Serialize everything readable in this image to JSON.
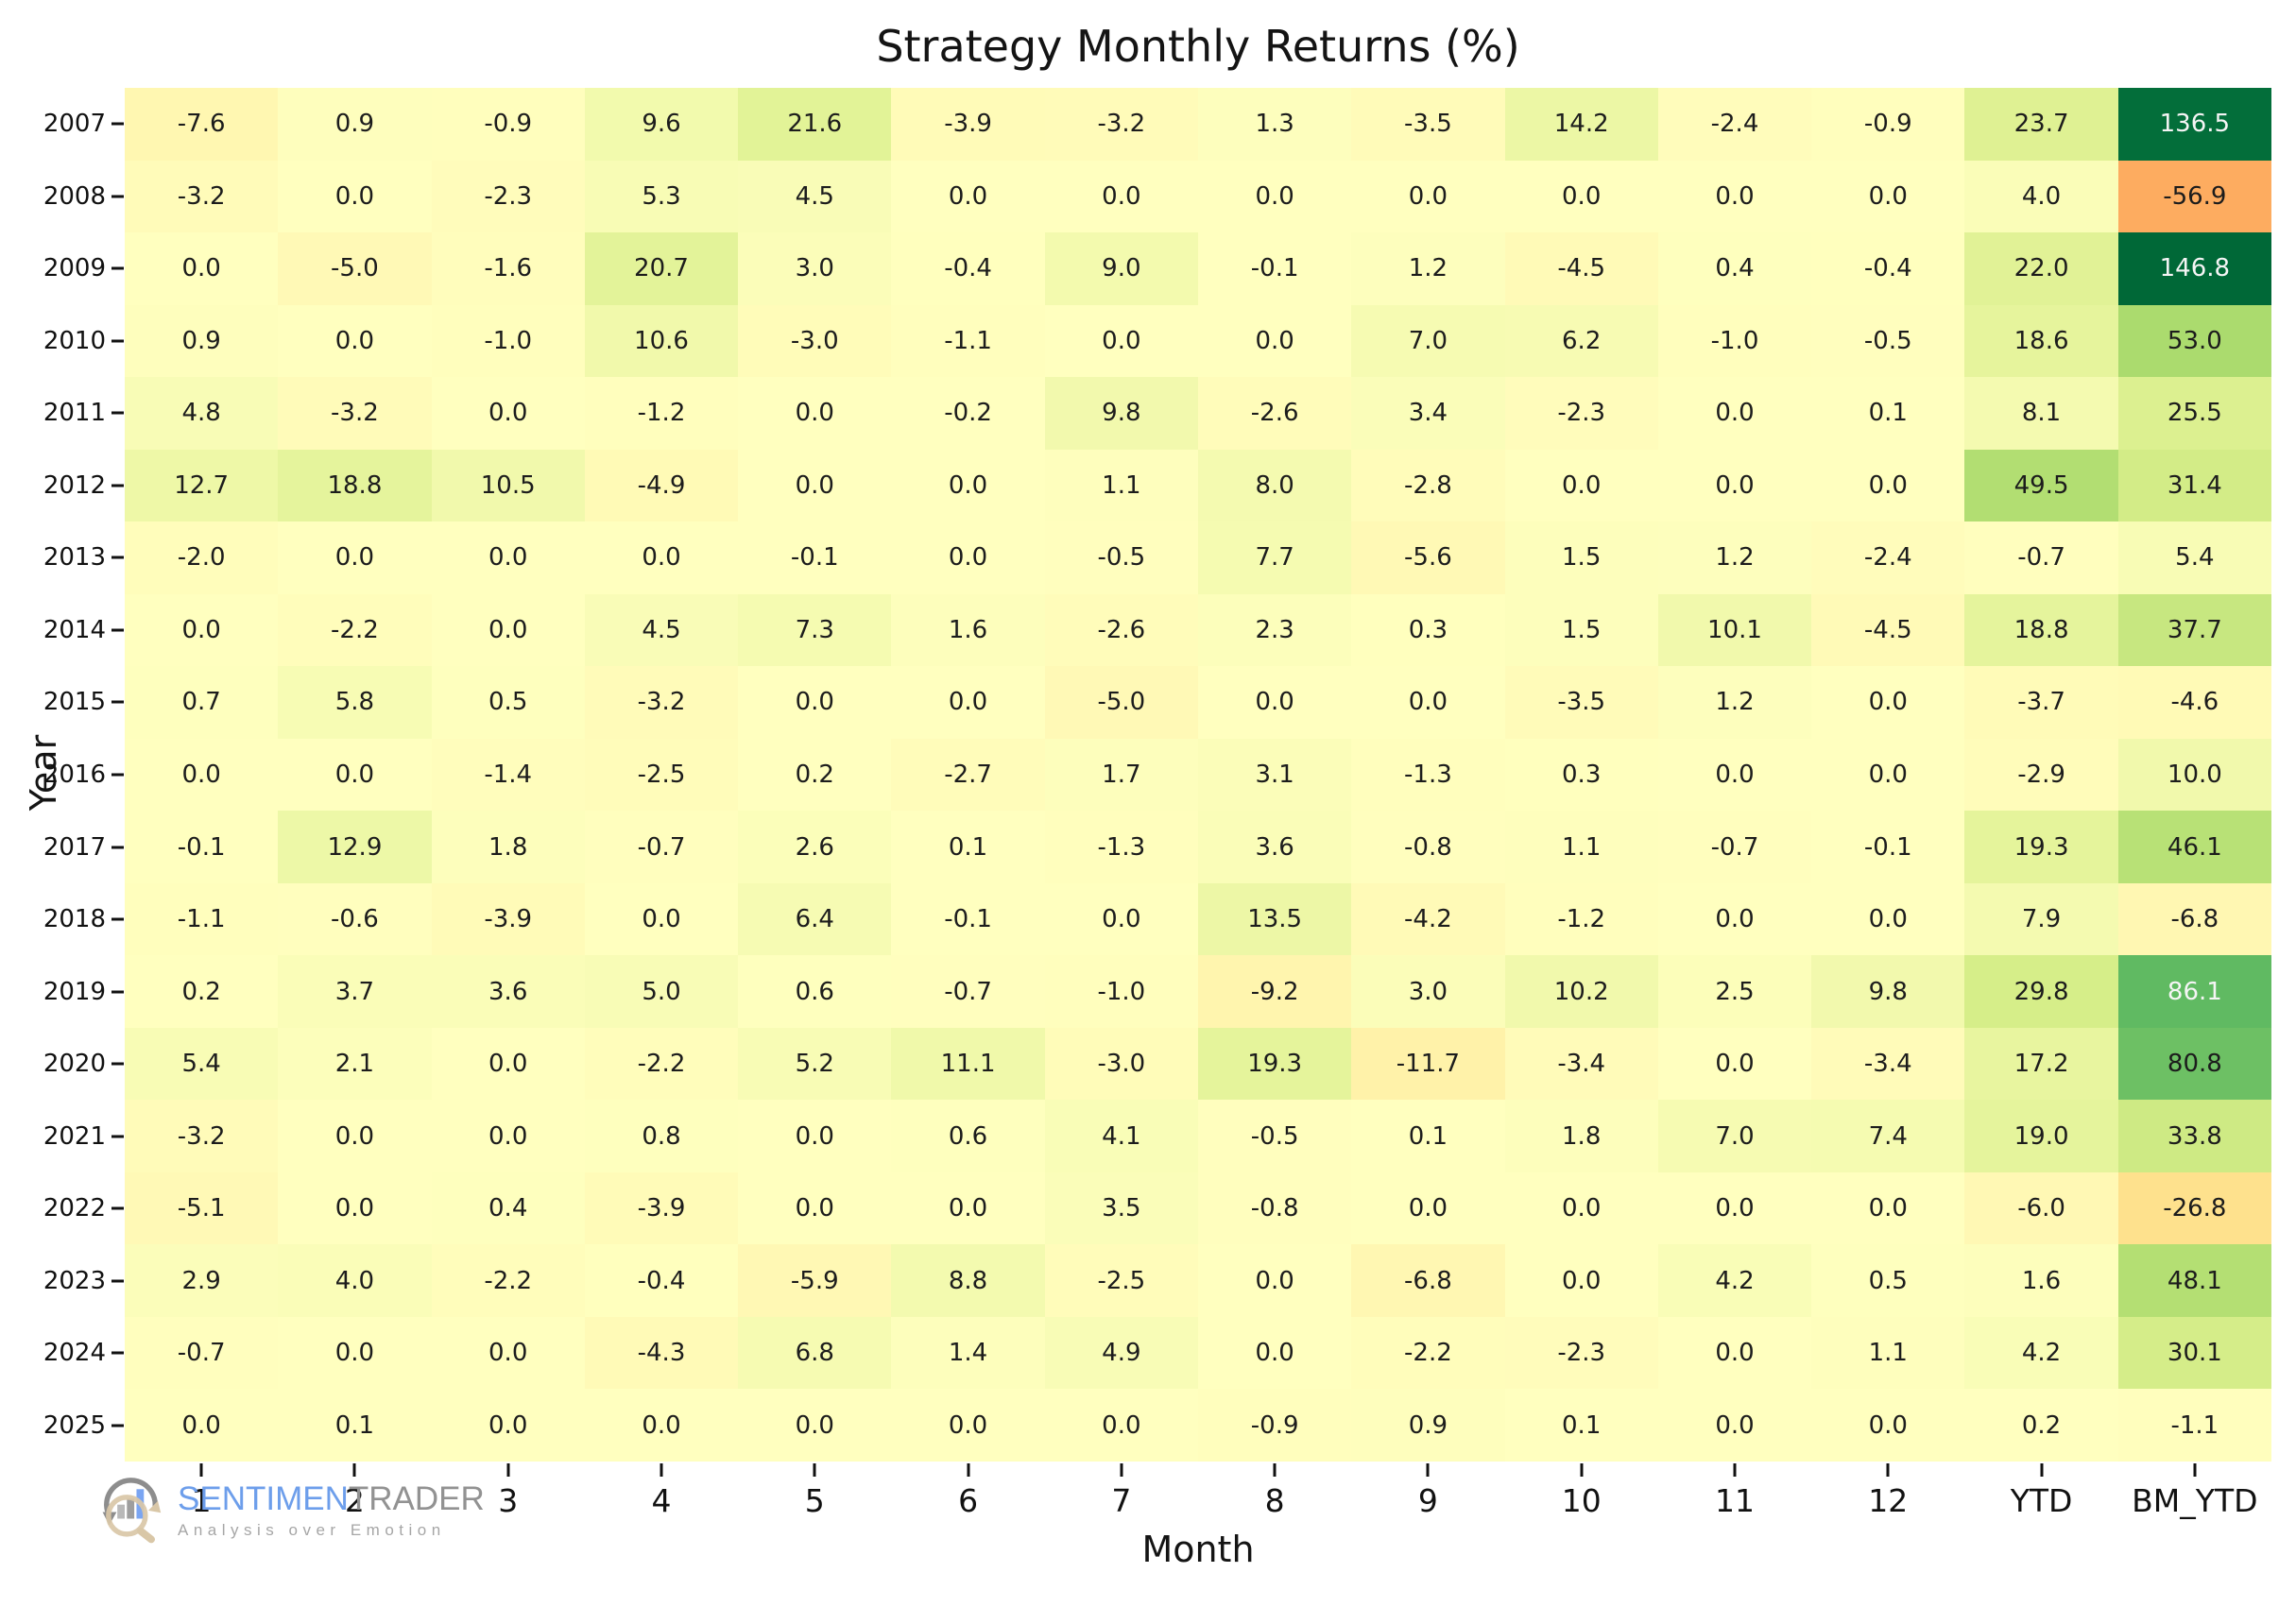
{
  "page": {
    "background": "#ffffff"
  },
  "chart_data": {
    "type": "heatmap",
    "title": "Strategy Monthly Returns (%)",
    "xlabel": "Month",
    "ylabel": "Year",
    "columns": [
      "1",
      "2",
      "3",
      "4",
      "5",
      "6",
      "7",
      "8",
      "9",
      "10",
      "11",
      "12",
      "YTD",
      "BM_YTD"
    ],
    "rows": [
      "2007",
      "2008",
      "2009",
      "2010",
      "2011",
      "2012",
      "2013",
      "2014",
      "2015",
      "2016",
      "2017",
      "2018",
      "2019",
      "2020",
      "2021",
      "2022",
      "2023",
      "2024",
      "2025"
    ],
    "values": [
      [
        -7.6,
        0.9,
        -0.9,
        9.6,
        21.6,
        -3.9,
        -3.2,
        1.3,
        -3.5,
        14.2,
        -2.4,
        -0.9,
        23.7,
        136.5
      ],
      [
        -3.2,
        0.0,
        -2.3,
        5.3,
        4.5,
        0.0,
        0.0,
        0.0,
        0.0,
        0.0,
        0.0,
        0.0,
        4.0,
        -56.9
      ],
      [
        0.0,
        -5.0,
        -1.6,
        20.7,
        3.0,
        -0.4,
        9.0,
        -0.1,
        1.2,
        -4.5,
        0.4,
        -0.4,
        22.0,
        146.8
      ],
      [
        0.9,
        0.0,
        -1.0,
        10.6,
        -3.0,
        -1.1,
        0.0,
        0.0,
        7.0,
        6.2,
        -1.0,
        -0.5,
        18.6,
        53.0
      ],
      [
        4.8,
        -3.2,
        0.0,
        -1.2,
        0.0,
        -0.2,
        9.8,
        -2.6,
        3.4,
        -2.3,
        0.0,
        0.1,
        8.1,
        25.5
      ],
      [
        12.7,
        18.8,
        10.5,
        -4.9,
        0.0,
        0.0,
        1.1,
        8.0,
        -2.8,
        0.0,
        0.0,
        0.0,
        49.5,
        31.4
      ],
      [
        -2.0,
        0.0,
        0.0,
        0.0,
        -0.1,
        0.0,
        -0.5,
        7.7,
        -5.6,
        1.5,
        1.2,
        -2.4,
        -0.7,
        5.4
      ],
      [
        0.0,
        -2.2,
        0.0,
        4.5,
        7.3,
        1.6,
        -2.6,
        2.3,
        0.3,
        1.5,
        10.1,
        -4.5,
        18.8,
        37.7
      ],
      [
        0.7,
        5.8,
        0.5,
        -3.2,
        0.0,
        0.0,
        -5.0,
        0.0,
        0.0,
        -3.5,
        1.2,
        0.0,
        -3.7,
        -4.6
      ],
      [
        0.0,
        0.0,
        -1.4,
        -2.5,
        0.2,
        -2.7,
        1.7,
        3.1,
        -1.3,
        0.3,
        0.0,
        0.0,
        -2.9,
        10.0
      ],
      [
        -0.1,
        12.9,
        1.8,
        -0.7,
        2.6,
        0.1,
        -1.3,
        3.6,
        -0.8,
        1.1,
        -0.7,
        -0.1,
        19.3,
        46.1
      ],
      [
        -1.1,
        -0.6,
        -3.9,
        0.0,
        6.4,
        -0.1,
        0.0,
        13.5,
        -4.2,
        -1.2,
        0.0,
        0.0,
        7.9,
        -6.8
      ],
      [
        0.2,
        3.7,
        3.6,
        5.0,
        0.6,
        -0.7,
        -1.0,
        -9.2,
        3.0,
        10.2,
        2.5,
        9.8,
        29.8,
        86.1
      ],
      [
        5.4,
        2.1,
        0.0,
        -2.2,
        5.2,
        11.1,
        -3.0,
        19.3,
        -11.7,
        -3.4,
        0.0,
        -3.4,
        17.2,
        80.8
      ],
      [
        -3.2,
        0.0,
        0.0,
        0.8,
        0.0,
        0.6,
        4.1,
        -0.5,
        0.1,
        1.8,
        7.0,
        7.4,
        19.0,
        33.8
      ],
      [
        -5.1,
        0.0,
        0.4,
        -3.9,
        0.0,
        0.0,
        3.5,
        -0.8,
        0.0,
        0.0,
        0.0,
        0.0,
        -6.0,
        -26.8
      ],
      [
        2.9,
        4.0,
        -2.2,
        -0.4,
        -5.9,
        8.8,
        -2.5,
        0.0,
        -6.8,
        0.0,
        4.2,
        0.5,
        1.6,
        48.1
      ],
      [
        -0.7,
        0.0,
        0.0,
        -4.3,
        6.8,
        1.4,
        4.9,
        0.0,
        -2.2,
        -2.3,
        0.0,
        1.1,
        4.2,
        30.1
      ],
      [
        0.0,
        0.1,
        0.0,
        0.0,
        0.0,
        0.0,
        0.0,
        -0.9,
        0.9,
        0.1,
        0.0,
        0.0,
        0.2,
        -1.1
      ]
    ],
    "annotation_decimals": 1,
    "grid": "off",
    "legend": "none",
    "colormap": {
      "name": "RdYlGn",
      "vmin": -140,
      "vmax": 140,
      "stops": [
        "#a50026",
        "#d73027",
        "#f46d43",
        "#fdae61",
        "#fee08b",
        "#ffffbf",
        "#d9ef8b",
        "#a6d96a",
        "#66bd63",
        "#1a9850",
        "#006837"
      ],
      "white_text_threshold": 85,
      "dark_text_color": "#1c1c1c",
      "light_text_color": "#f5f5f5"
    }
  },
  "branding": {
    "name_primary": "SENTIMEN",
    "name_secondary": "TRADER",
    "tagline": "Analysis over Emotion",
    "color_primary": "#6d9eeb",
    "color_secondary": "#929292",
    "tagline_color": "#a6a6a6"
  }
}
